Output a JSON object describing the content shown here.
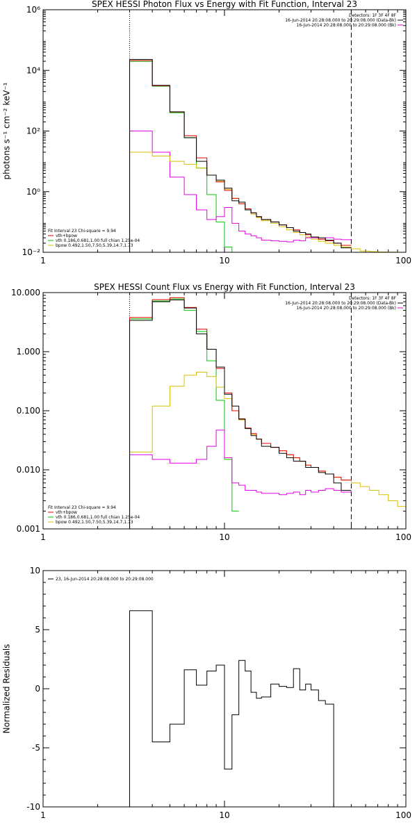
{
  "colors": {
    "data": "#000000",
    "total": "#e00000",
    "vth": "#00c800",
    "bpow": "#d6c000",
    "vth_bpow": "#e000e0",
    "frame": "#000000",
    "background": "#ffffff"
  },
  "chart_data": [
    {
      "type": "line",
      "title": "SPEX HESSI Photon Flux vs Energy with Fit Function, Interval 23",
      "xlabel": "",
      "ylabel": "photons s⁻¹ cm⁻² keV⁻¹",
      "xscale": "log",
      "yscale": "log",
      "xlim": [
        1,
        100
      ],
      "ylim": [
        0.01,
        1000000
      ],
      "xticks": [
        {
          "value": 1,
          "label": "1"
        },
        {
          "value": 10,
          "label": "10"
        },
        {
          "value": 100,
          "label": "100"
        }
      ],
      "yticks": [
        {
          "value": 0.01,
          "label": "10⁻²"
        },
        {
          "value": 1,
          "label": "10⁰"
        },
        {
          "value": 100,
          "label": "10²"
        },
        {
          "value": 10000,
          "label": "10⁴"
        },
        {
          "value": 1000000,
          "label": "10⁶"
        }
      ],
      "vlines": [
        {
          "x": 3,
          "style": "dotted"
        },
        {
          "x": 50,
          "style": "dashed"
        }
      ],
      "info_lines": [
        "Detectors: 1F 3F 4F 8F",
        "16-Jun-2014 20:28:08.000 to 20:29:08.000 (Data-Bk)",
        "16-Jun-2014 20:28:08.000 to 20:29:08.000 (Bk)"
      ],
      "info_markers": [
        "data",
        "vth_bpow"
      ],
      "legend": {
        "placement": "bottom-left",
        "header": "Fit Interval 23   Chi-square = 9.94",
        "entries": [
          {
            "label": "vth+bpow",
            "color_key": "total"
          },
          {
            "label": "vth 0.186,0.681,1.00  full chian 1.25e-04",
            "color_key": "vth"
          },
          {
            "label": "bpow 0.492,1.50,7.50,5.39,14.7,1.73",
            "color_key": "bpow"
          }
        ]
      },
      "series": [
        {
          "color_key": "vth",
          "edges": [
            3,
            4,
            5,
            6,
            7,
            8,
            9,
            10,
            11,
            12
          ],
          "values": [
            20000,
            3000,
            400,
            60,
            6,
            0.8,
            0.1,
            0.015,
            0.01
          ]
        },
        {
          "color_key": "vth_bpow",
          "edges": [
            3,
            4,
            5,
            6,
            7,
            8,
            9,
            10,
            11,
            12,
            13,
            14,
            15,
            16,
            18,
            20,
            22,
            24,
            26,
            28,
            30,
            33,
            36,
            40,
            44,
            50
          ],
          "values": [
            100,
            20,
            3,
            0.8,
            0.25,
            0.12,
            0.15,
            0.3,
            0.09,
            0.05,
            0.04,
            0.035,
            0.03,
            0.025,
            0.024,
            0.023,
            0.022,
            0.025,
            0.024,
            0.03,
            0.03,
            0.027,
            0.03,
            0.027,
            0.026
          ]
        },
        {
          "color_key": "bpow",
          "edges": [
            3,
            4,
            5,
            6,
            7,
            8,
            9,
            10,
            11,
            12,
            13,
            14,
            15,
            16,
            18,
            20,
            22,
            24,
            26,
            28,
            30,
            33,
            36,
            40,
            44,
            50,
            56,
            63,
            71,
            80,
            90
          ],
          "values": [
            20,
            15,
            10,
            8,
            6,
            3.5,
            2.2,
            1.2,
            0.6,
            0.4,
            0.25,
            0.18,
            0.14,
            0.11,
            0.09,
            0.07,
            0.055,
            0.045,
            0.038,
            0.032,
            0.027,
            0.023,
            0.02,
            0.017,
            0.015,
            0.013,
            0.011,
            0.0105,
            0.0102,
            0.0101
          ]
        },
        {
          "color_key": "total",
          "edges": [
            3,
            4,
            5,
            6,
            7,
            8,
            9,
            10,
            11,
            12,
            13,
            14,
            15,
            16,
            18,
            20,
            22,
            24,
            26,
            28,
            30,
            33,
            36,
            40,
            44,
            50
          ],
          "values": [
            21000,
            3100,
            420,
            70,
            13,
            3.5,
            2.1,
            1.1,
            0.6,
            0.4,
            0.27,
            0.2,
            0.15,
            0.12,
            0.1,
            0.08,
            0.065,
            0.055,
            0.045,
            0.038,
            0.032,
            0.027,
            0.024,
            0.02,
            0.017
          ]
        },
        {
          "color_key": "data",
          "edges": [
            3,
            4,
            5,
            6,
            7,
            8,
            9,
            10,
            11,
            12,
            13,
            14,
            15,
            16,
            18,
            20,
            22,
            24,
            26,
            28,
            30,
            33,
            36,
            40,
            44,
            50
          ],
          "values": [
            23000,
            3200,
            430,
            60,
            10,
            3.5,
            2.4,
            1.3,
            0.5,
            0.45,
            0.25,
            0.2,
            0.15,
            0.12,
            0.1,
            0.08,
            0.065,
            0.05,
            0.045,
            0.04,
            0.032,
            0.03,
            0.025,
            0.02,
            0.014
          ]
        }
      ]
    },
    {
      "type": "line",
      "title": "SPEX HESSI Count Flux vs Energy with Fit Function, Interval 23",
      "xlabel": "",
      "ylabel": "",
      "xscale": "log",
      "yscale": "log",
      "xlim": [
        1,
        100
      ],
      "ylim": [
        0.001,
        10
      ],
      "xticks": [
        {
          "value": 1,
          "label": "1"
        },
        {
          "value": 10,
          "label": "10"
        },
        {
          "value": 100,
          "label": "100"
        }
      ],
      "yticks": [
        {
          "value": 0.001,
          "label": "0.001"
        },
        {
          "value": 0.01,
          "label": "0.010"
        },
        {
          "value": 0.1,
          "label": "0.100"
        },
        {
          "value": 1,
          "label": "1.000"
        },
        {
          "value": 10,
          "label": "10.000"
        }
      ],
      "vlines": [
        {
          "x": 3,
          "style": "dotted"
        },
        {
          "x": 50,
          "style": "dashed"
        }
      ],
      "info_lines": [
        "Detectors: 1F 3F 4F 8F",
        "16-Jun-2014 20:28:08.000 to 20:29:08.000 (Data-Bk)",
        "16-Jun-2014 20:28:08.000 to 20:29:08.000 (Bk)"
      ],
      "info_markers": [
        "data",
        "vth_bpow"
      ],
      "legend": {
        "placement": "bottom-left",
        "header": "Fit Interval 23   Chi-square = 9.94",
        "entries": [
          {
            "label": "vth+bpow",
            "color_key": "total"
          },
          {
            "label": "vth 0.186,0.681,1.00  full chian 1.25e-04",
            "color_key": "vth"
          },
          {
            "label": "bpow 0.492,1.50,7.50,5.39,14.7,1.73",
            "color_key": "bpow"
          }
        ]
      },
      "series": [
        {
          "color_key": "vth",
          "edges": [
            3,
            4,
            5,
            6,
            7,
            8,
            9,
            10,
            11,
            12
          ],
          "values": [
            3.6,
            7.2,
            7.8,
            5,
            2.2,
            0.7,
            0.15,
            0.015,
            0.002
          ]
        },
        {
          "color_key": "vth_bpow",
          "edges": [
            3,
            4,
            5,
            6,
            7,
            8,
            9,
            10,
            11,
            12,
            13,
            14,
            15,
            16,
            18,
            20,
            22,
            24,
            26,
            28,
            30,
            33,
            36,
            40,
            44,
            50
          ],
          "values": [
            0.018,
            0.015,
            0.013,
            0.013,
            0.015,
            0.025,
            0.047,
            0.016,
            0.006,
            0.0055,
            0.0045,
            0.0045,
            0.0042,
            0.004,
            0.004,
            0.0038,
            0.004,
            0.0042,
            0.0038,
            0.0045,
            0.0042,
            0.0045,
            0.0048,
            0.0045,
            0.0042
          ]
        },
        {
          "color_key": "bpow",
          "edges": [
            3,
            4,
            5,
            6,
            7,
            8,
            9,
            10,
            11,
            12,
            13,
            14,
            15,
            16,
            18,
            20,
            22,
            24,
            26,
            28,
            30,
            33,
            36,
            40,
            44,
            50,
            56,
            63,
            71,
            80,
            90,
            100
          ],
          "values": [
            0.02,
            0.12,
            0.26,
            0.4,
            0.45,
            0.38,
            0.25,
            0.16,
            0.1,
            0.07,
            0.05,
            0.04,
            0.033,
            0.028,
            0.024,
            0.021,
            0.018,
            0.016,
            0.014,
            0.012,
            0.011,
            0.0095,
            0.0085,
            0.0075,
            0.0067,
            0.006,
            0.0052,
            0.0045,
            0.0038,
            0.003,
            0.0024
          ]
        },
        {
          "color_key": "total",
          "edges": [
            3,
            4,
            5,
            6,
            7,
            8,
            9,
            10,
            11,
            12,
            13,
            14,
            15,
            16,
            18,
            20,
            22,
            24,
            26,
            28,
            30,
            33,
            36,
            40,
            44,
            50
          ],
          "values": [
            3.8,
            7.6,
            8.2,
            5.6,
            2.4,
            1.1,
            0.52,
            0.2,
            0.1,
            0.073,
            0.051,
            0.041,
            0.033,
            0.028,
            0.024,
            0.021,
            0.018,
            0.016,
            0.014,
            0.012,
            0.011,
            0.0095,
            0.0085,
            0.0075,
            0.0067
          ]
        },
        {
          "color_key": "data",
          "edges": [
            3,
            4,
            5,
            6,
            7,
            8,
            9,
            10,
            11,
            12,
            13,
            14,
            15,
            16,
            18,
            20,
            22,
            24,
            26,
            28,
            30,
            33,
            36,
            40,
            44,
            50
          ],
          "values": [
            3.4,
            7,
            7.5,
            5.5,
            2,
            1.1,
            0.55,
            0.19,
            0.12,
            0.072,
            0.05,
            0.038,
            0.033,
            0.025,
            0.024,
            0.019,
            0.016,
            0.014,
            0.014,
            0.011,
            0.011,
            0.009,
            0.0085,
            0.006,
            0.0045
          ]
        }
      ]
    },
    {
      "type": "line",
      "title": "",
      "xlabel": "",
      "ylabel": "Normalized Residuals",
      "xscale": "log",
      "yscale": "linear",
      "xlim": [
        1,
        100
      ],
      "ylim": [
        -10,
        10
      ],
      "xticks": [
        {
          "value": 1,
          "label": "1"
        },
        {
          "value": 10,
          "label": "10"
        },
        {
          "value": 100,
          "label": "100"
        }
      ],
      "yticks": [
        {
          "value": -10,
          "label": "-10"
        },
        {
          "value": -5,
          "label": "-5"
        },
        {
          "value": 0,
          "label": "0"
        },
        {
          "value": 5,
          "label": "5"
        },
        {
          "value": 10,
          "label": "10"
        }
      ],
      "vlines": [],
      "info_lines": [],
      "info_markers": [],
      "legend": {
        "placement": "top-left",
        "header": "",
        "entries": [
          {
            "label": "23, 16-Jun-2014 20:28:08.000 to 20:29:08.000",
            "color_key": "data"
          }
        ]
      },
      "series": [
        {
          "color_key": "data",
          "edges": [
            3,
            4,
            5,
            6,
            7,
            8,
            9,
            10,
            11,
            12,
            13,
            14,
            15,
            16,
            18,
            20,
            22,
            24,
            26,
            28,
            30,
            33,
            36,
            40,
            44,
            50
          ],
          "values": [
            6.6,
            -4.5,
            -3,
            1.6,
            0.3,
            1.5,
            2,
            -6.8,
            -2.2,
            2.4,
            1.5,
            -0.3,
            -0.8,
            -0.7,
            0.4,
            0.2,
            0.1,
            1.7,
            -0.1,
            0.4,
            -0.1,
            -1,
            -1.3,
            -10,
            -10
          ],
          "close_to": -10
        }
      ]
    }
  ]
}
